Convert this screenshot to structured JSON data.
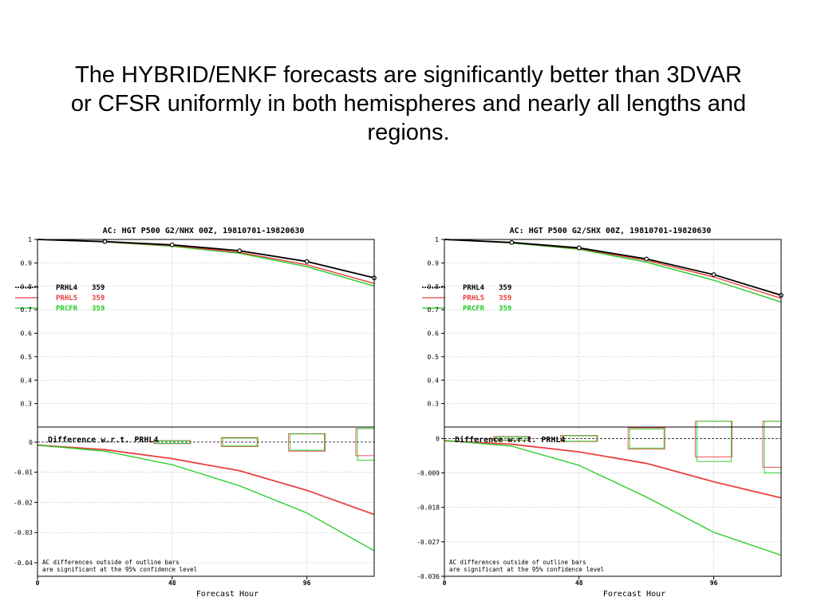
{
  "slide": {
    "title_lines": [
      "The HYBRID/ENKF forecasts are significantly better than 3DVAR",
      "or CFSR uniformly in both hemispheres and nearly all lengths and",
      "regions."
    ]
  },
  "colors": {
    "PRHL4": "#000000",
    "PRHL5": "#e84040",
    "PRCFR": "#22cc22"
  },
  "chart_data": [
    {
      "type": "line",
      "title": "AC: HGT P500 G2/NHX 00Z, 19810701-19820630",
      "xlabel": "Forecast Hour",
      "x_ticks": [
        0,
        48,
        96
      ],
      "xlim": [
        0,
        120
      ],
      "top": {
        "ylim": [
          0.2,
          1.0
        ],
        "y_ticks": [
          "1",
          "0.9",
          "0.8",
          "0.7",
          "0.6",
          "0.5",
          "0.4",
          "0.3"
        ],
        "y_tick_values": [
          1.0,
          0.9,
          0.8,
          0.7,
          0.6,
          0.5,
          0.4,
          0.3
        ],
        "legend": [
          {
            "name": "PRHL4",
            "count": "359"
          },
          {
            "name": "PRHL5",
            "count": "359"
          },
          {
            "name": "PRCFR",
            "count": "359"
          }
        ],
        "x": [
          0,
          24,
          48,
          72,
          96,
          120
        ],
        "series": [
          {
            "name": "PRHL4",
            "values": [
              1.0,
              0.991,
              0.977,
              0.952,
              0.906,
              0.836
            ]
          },
          {
            "name": "PRHL5",
            "values": [
              1.0,
              0.99,
              0.974,
              0.945,
              0.892,
              0.812
            ]
          },
          {
            "name": "PRCFR",
            "values": [
              1.0,
              0.989,
              0.971,
              0.941,
              0.884,
              0.801
            ]
          }
        ]
      },
      "bottom": {
        "title": "Difference w.r.t. PRHL4",
        "ylim": [
          -0.0445,
          0.005
        ],
        "y_ticks": [
          "0",
          "-0.01",
          "-0.02",
          "-0.03",
          "-0.04"
        ],
        "y_tick_values": [
          0,
          -0.01,
          -0.02,
          -0.03,
          -0.04
        ],
        "x": [
          0,
          24,
          48,
          72,
          96,
          120
        ],
        "series": [
          {
            "name": "PRHL5",
            "values": [
              -0.001,
              -0.0025,
              -0.0055,
              -0.0095,
              -0.016,
              -0.024
            ]
          },
          {
            "name": "PRCFR",
            "values": [
              -0.001,
              -0.003,
              -0.0075,
              -0.0145,
              -0.0235,
              -0.036
            ]
          }
        ],
        "bars": [
          {
            "x": 48,
            "PRHL5": [
              -0.0005,
              0.0005
            ],
            "PRCFR": [
              -0.0004,
              0.0004
            ]
          },
          {
            "x": 72,
            "PRHL5": [
              -0.0015,
              0.0015
            ],
            "PRCFR": [
              -0.0013,
              0.0013
            ]
          },
          {
            "x": 96,
            "PRHL5": [
              -0.003,
              0.0028
            ],
            "PRCFR": [
              -0.0027,
              0.0027
            ]
          },
          {
            "x": 120,
            "PRHL5": [
              -0.0045,
              0.0045
            ],
            "PRCFR": [
              -0.006,
              0.0045
            ]
          }
        ],
        "note_lines": [
          "AC differences outside of outline bars",
          "are significant at the 95% confidence level"
        ]
      }
    },
    {
      "type": "line",
      "title": "AC: HGT P500 G2/SHX 00Z, 19810701-19820630",
      "xlabel": "Forecast Hour",
      "x_ticks": [
        0,
        48,
        96
      ],
      "xlim": [
        0,
        120
      ],
      "top": {
        "ylim": [
          0.2,
          1.0
        ],
        "y_ticks": [
          "1",
          "0.9",
          "0.8",
          "0.7",
          "0.6",
          "0.5",
          "0.4",
          "0.3"
        ],
        "y_tick_values": [
          1.0,
          0.9,
          0.8,
          0.7,
          0.6,
          0.5,
          0.4,
          0.3
        ],
        "legend": [
          {
            "name": "PRHL4",
            "count": "359"
          },
          {
            "name": "PRHL5",
            "count": "359"
          },
          {
            "name": "PRCFR",
            "count": "359"
          }
        ],
        "x": [
          0,
          24,
          48,
          72,
          96,
          120
        ],
        "series": [
          {
            "name": "PRHL4",
            "values": [
              1.0,
              0.987,
              0.964,
              0.917,
              0.85,
              0.762
            ]
          },
          {
            "name": "PRHL5",
            "values": [
              1.0,
              0.986,
              0.961,
              0.911,
              0.84,
              0.749
            ]
          },
          {
            "name": "PRCFR",
            "values": [
              1.0,
              0.985,
              0.958,
              0.903,
              0.826,
              0.733
            ]
          }
        ]
      },
      "bottom": {
        "title": "Difference w.r.t. PRHL4",
        "ylim": [
          -0.036,
          0.003
        ],
        "y_ticks": [
          "0",
          "-0.009",
          "-0.018",
          "-0.027",
          "-0.036"
        ],
        "y_tick_values": [
          0,
          -0.009,
          -0.018,
          -0.027,
          -0.036
        ],
        "x": [
          0,
          24,
          48,
          72,
          96,
          120
        ],
        "series": [
          {
            "name": "PRHL5",
            "values": [
              -0.0006,
              -0.0015,
              -0.0035,
              -0.0065,
              -0.0113,
              -0.0155
            ]
          },
          {
            "name": "PRCFR",
            "values": [
              -0.0005,
              -0.002,
              -0.007,
              -0.0153,
              -0.0245,
              -0.0305
            ]
          }
        ],
        "bars": [
          {
            "x": 24,
            "PRHL5": [
              -0.0005,
              0.0005
            ],
            "PRCFR": [
              -0.0004,
              0.0004
            ]
          },
          {
            "x": 48,
            "PRHL5": [
              -0.0008,
              0.0008
            ],
            "PRCFR": [
              -0.0007,
              0.0007
            ]
          },
          {
            "x": 72,
            "PRHL5": [
              -0.0028,
              0.0028
            ],
            "PRCFR": [
              -0.0025,
              0.0025
            ]
          },
          {
            "x": 96,
            "PRHL5": [
              -0.0048,
              0.0045
            ],
            "PRCFR": [
              -0.006,
              0.0045
            ]
          },
          {
            "x": 120,
            "PRHL5": [
              -0.0075,
              0.0045
            ],
            "PRCFR": [
              -0.009,
              0.0045
            ]
          }
        ],
        "note_lines": [
          "AC differences outside of outline bars",
          "are significant at the 95% confidence level"
        ]
      }
    }
  ]
}
